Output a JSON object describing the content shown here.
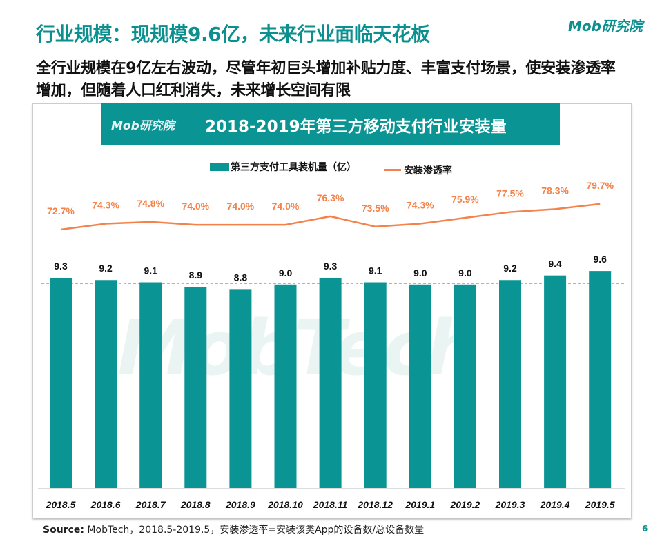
{
  "header": {
    "title": "行业规模：现规模9.6亿，未来行业面临天花板",
    "subtitle": "全行业规模在9亿左右波动，尽管年初巨头增加补贴力度、丰富支付场景，使安装渗透率增加，但随着人口红利消失，未来增长空间有限",
    "logo": "Mob研究院"
  },
  "chart_banner": {
    "logo": "Mob研究院",
    "title": "2018-2019年第三方移动支付行业安装量"
  },
  "watermark": "MobTech",
  "chart_data": {
    "type": "bar+line",
    "title": "2018-2019年第三方移动支付行业安装量",
    "categories": [
      "2018.5",
      "2018.6",
      "2018.7",
      "2018.8",
      "2018.9",
      "2018.10",
      "2018.11",
      "2018.12",
      "2019.1",
      "2019.2",
      "2019.3",
      "2019.4",
      "2019.5"
    ],
    "series": [
      {
        "name": "第三方支付工具装机量（亿）",
        "type": "bar",
        "color": "#0b9494",
        "values": [
          9.3,
          9.2,
          9.1,
          8.9,
          8.8,
          9.0,
          9.3,
          9.1,
          9.0,
          9.0,
          9.2,
          9.4,
          9.6
        ],
        "labels": [
          "9.3",
          "9.2",
          "9.1",
          "8.9",
          "8.8",
          "9.0",
          "9.3",
          "9.1",
          "9.0",
          "9.0",
          "9.2",
          "9.4",
          "9.6"
        ]
      },
      {
        "name": "安装渗透率",
        "type": "line",
        "color": "#f4824a",
        "values": [
          72.7,
          74.3,
          74.8,
          74.0,
          74.0,
          74.0,
          76.3,
          73.5,
          74.3,
          75.9,
          77.5,
          78.3,
          79.7
        ],
        "labels": [
          "72.7%",
          "74.3%",
          "74.8%",
          "74.0%",
          "74.0%",
          "74.0%",
          "76.3%",
          "73.5%",
          "74.3%",
          "75.9%",
          "77.5%",
          "78.3%",
          "79.7%"
        ]
      }
    ],
    "legend": "top",
    "reference_line": {
      "style": "dashed",
      "color": "#e03030"
    }
  },
  "footer": {
    "source_label": "Source:",
    "source_text": "MobTech，2018.5-2019.5，安装渗透率=安装该类App的设备数/总设备数量",
    "page": "6"
  }
}
